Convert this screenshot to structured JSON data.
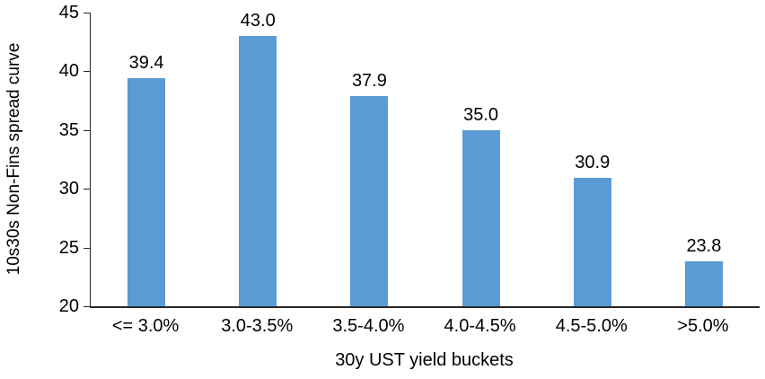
{
  "chart_data": {
    "type": "bar",
    "categories": [
      "<= 3.0%",
      "3.0-3.5%",
      "3.5-4.0%",
      "4.0-4.5%",
      "4.5-5.0%",
      ">5.0%"
    ],
    "values": [
      39.4,
      43.0,
      37.9,
      35.0,
      30.9,
      23.8
    ],
    "value_labels": [
      "39.4",
      "43.0",
      "37.9",
      "35.0",
      "30.9",
      "23.8"
    ],
    "title": "",
    "xlabel": "30y UST yield buckets",
    "ylabel": "10s30s Non-Fins spread curve",
    "ylim": [
      20,
      45
    ],
    "yticks": [
      20,
      25,
      30,
      35,
      40,
      45
    ],
    "grid": false,
    "legend": "none",
    "bar_color": "#5B9BD5",
    "axis_color": "#262626",
    "text_color": "#000000"
  }
}
